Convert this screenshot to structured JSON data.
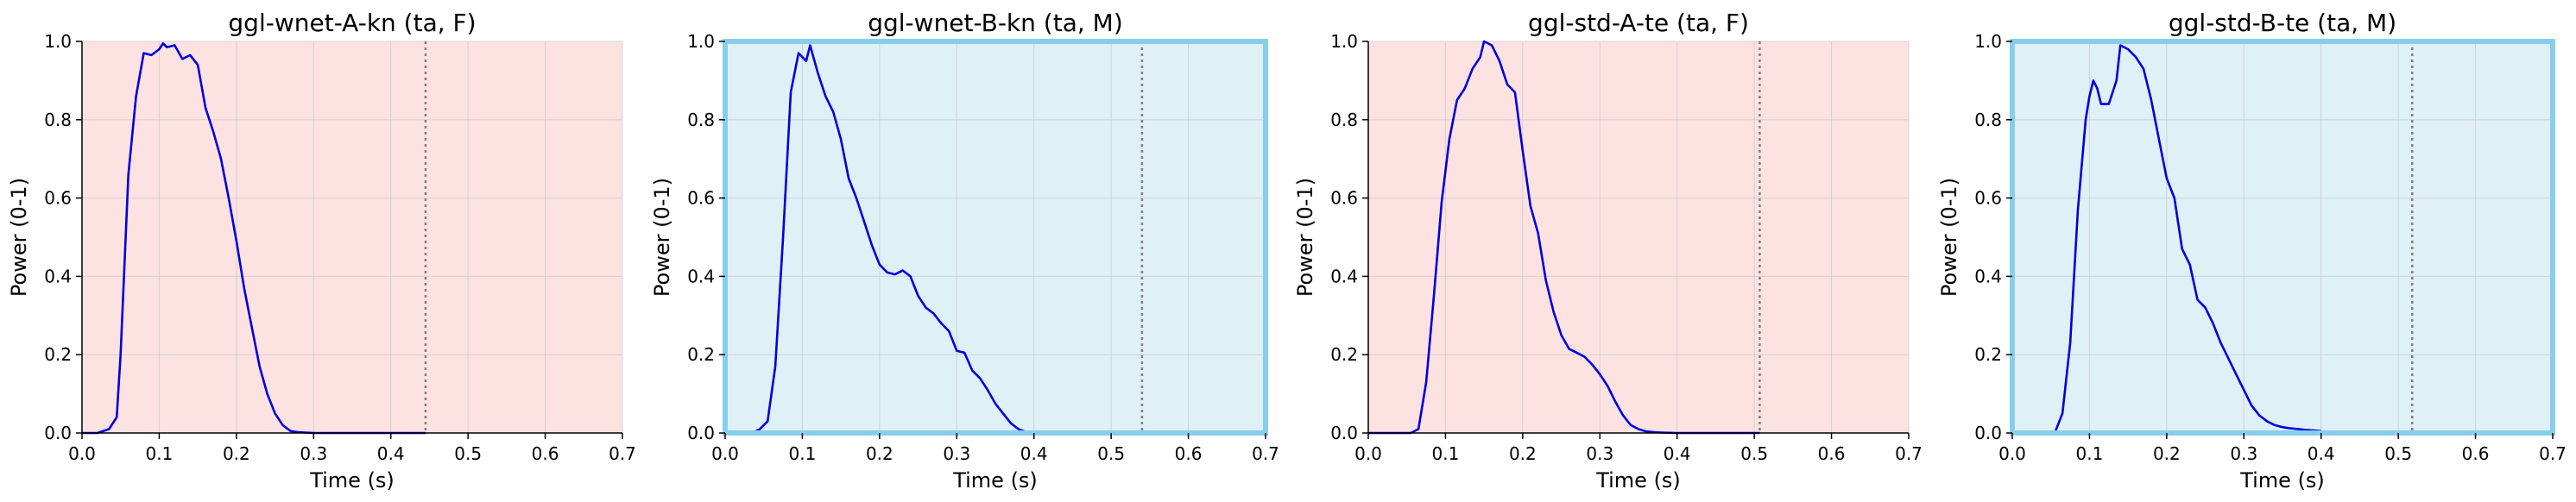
{
  "chart_data": [
    {
      "type": "line",
      "title": "ggl-wnet-A-kn (ta, F)",
      "xlabel": "Time (s)",
      "ylabel": "Power (0-1)",
      "xlim": [
        0,
        0.7
      ],
      "ylim": [
        0,
        1.0
      ],
      "xticks": [
        "0.0",
        "0.1",
        "0.2",
        "0.3",
        "0.4",
        "0.5",
        "0.6",
        "0.7"
      ],
      "yticks": [
        "0.0",
        "0.2",
        "0.4",
        "0.6",
        "0.8",
        "1.0"
      ],
      "grid": true,
      "background_color": "#fde2e2",
      "border_color": null,
      "marker_line": 0.445,
      "series": [
        {
          "color": "#0000dd",
          "x": [
            0,
            0.02,
            0.035,
            0.045,
            0.05,
            0.06,
            0.07,
            0.08,
            0.09,
            0.1,
            0.105,
            0.11,
            0.12,
            0.13,
            0.14,
            0.15,
            0.16,
            0.17,
            0.18,
            0.19,
            0.2,
            0.21,
            0.22,
            0.23,
            0.24,
            0.25,
            0.26,
            0.27,
            0.28,
            0.3,
            0.35,
            0.4,
            0.445
          ],
          "y": [
            0,
            0,
            0.01,
            0.04,
            0.2,
            0.66,
            0.86,
            0.97,
            0.965,
            0.98,
            0.995,
            0.985,
            0.99,
            0.955,
            0.965,
            0.94,
            0.83,
            0.77,
            0.7,
            0.6,
            0.49,
            0.37,
            0.27,
            0.17,
            0.1,
            0.05,
            0.02,
            0.005,
            0.002,
            0,
            0,
            0,
            0
          ]
        }
      ]
    },
    {
      "type": "line",
      "title": "ggl-wnet-B-kn (ta, M)",
      "xlabel": "Time (s)",
      "ylabel": "Power (0-1)",
      "xlim": [
        0,
        0.7
      ],
      "ylim": [
        0,
        1.0
      ],
      "xticks": [
        "0.0",
        "0.1",
        "0.2",
        "0.3",
        "0.4",
        "0.5",
        "0.6",
        "0.7"
      ],
      "yticks": [
        "0.0",
        "0.2",
        "0.4",
        "0.6",
        "0.8",
        "1.0"
      ],
      "grid": true,
      "background_color": "#dff0f7",
      "border_color": "#87ceeb",
      "marker_line": 0.54,
      "series": [
        {
          "color": "#0000dd",
          "x": [
            0.035,
            0.045,
            0.055,
            0.065,
            0.075,
            0.085,
            0.095,
            0.105,
            0.11,
            0.12,
            0.13,
            0.14,
            0.15,
            0.16,
            0.17,
            0.18,
            0.19,
            0.2,
            0.21,
            0.22,
            0.23,
            0.24,
            0.25,
            0.26,
            0.27,
            0.28,
            0.29,
            0.3,
            0.31,
            0.32,
            0.33,
            0.34,
            0.35,
            0.36,
            0.37,
            0.38,
            0.39,
            0.4
          ],
          "y": [
            0,
            0.01,
            0.03,
            0.17,
            0.5,
            0.87,
            0.97,
            0.95,
            0.99,
            0.92,
            0.86,
            0.82,
            0.75,
            0.65,
            0.6,
            0.54,
            0.48,
            0.43,
            0.41,
            0.405,
            0.415,
            0.4,
            0.35,
            0.32,
            0.305,
            0.28,
            0.26,
            0.21,
            0.205,
            0.16,
            0.14,
            0.11,
            0.075,
            0.05,
            0.025,
            0.01,
            0.002,
            0
          ]
        }
      ]
    },
    {
      "type": "line",
      "title": "ggl-std-A-te (ta, F)",
      "xlabel": "Time (s)",
      "ylabel": "Power (0-1)",
      "xlim": [
        0,
        0.7
      ],
      "ylim": [
        0,
        1.0
      ],
      "xticks": [
        "0.0",
        "0.1",
        "0.2",
        "0.3",
        "0.4",
        "0.5",
        "0.6",
        "0.7"
      ],
      "yticks": [
        "0.0",
        "0.2",
        "0.4",
        "0.6",
        "0.8",
        "1.0"
      ],
      "grid": true,
      "background_color": "#fde2e2",
      "border_color": null,
      "marker_line": 0.507,
      "series": [
        {
          "color": "#0000dd",
          "x": [
            0,
            0.055,
            0.065,
            0.075,
            0.085,
            0.095,
            0.105,
            0.115,
            0.125,
            0.135,
            0.145,
            0.15,
            0.16,
            0.17,
            0.18,
            0.19,
            0.2,
            0.21,
            0.22,
            0.23,
            0.24,
            0.25,
            0.26,
            0.27,
            0.28,
            0.29,
            0.3,
            0.31,
            0.32,
            0.33,
            0.34,
            0.35,
            0.36,
            0.37,
            0.38,
            0.4,
            0.45,
            0.507
          ],
          "y": [
            0,
            0,
            0.01,
            0.13,
            0.35,
            0.59,
            0.75,
            0.85,
            0.88,
            0.93,
            0.96,
            1.0,
            0.99,
            0.95,
            0.89,
            0.87,
            0.72,
            0.58,
            0.51,
            0.39,
            0.31,
            0.25,
            0.215,
            0.205,
            0.195,
            0.175,
            0.15,
            0.12,
            0.08,
            0.045,
            0.02,
            0.01,
            0.004,
            0.002,
            0.001,
            0,
            0,
            0
          ]
        }
      ]
    },
    {
      "type": "line",
      "title": "ggl-std-B-te (ta, M)",
      "xlabel": "Time (s)",
      "ylabel": "Power (0-1)",
      "xlim": [
        0,
        0.7
      ],
      "ylim": [
        0,
        1.0
      ],
      "xticks": [
        "0.0",
        "0.1",
        "0.2",
        "0.3",
        "0.4",
        "0.5",
        "0.6",
        "0.7"
      ],
      "yticks": [
        "0.0",
        "0.2",
        "0.4",
        "0.6",
        "0.8",
        "1.0"
      ],
      "grid": true,
      "background_color": "#dff0f7",
      "border_color": "#87ceeb",
      "marker_line": 0.518,
      "series": [
        {
          "color": "#0000dd",
          "x": [
            0.055,
            0.065,
            0.075,
            0.085,
            0.095,
            0.1,
            0.105,
            0.11,
            0.115,
            0.125,
            0.135,
            0.14,
            0.15,
            0.16,
            0.17,
            0.18,
            0.19,
            0.2,
            0.21,
            0.22,
            0.23,
            0.24,
            0.25,
            0.26,
            0.27,
            0.28,
            0.29,
            0.3,
            0.31,
            0.32,
            0.33,
            0.34,
            0.35,
            0.36,
            0.38,
            0.4
          ],
          "y": [
            0.0,
            0.05,
            0.23,
            0.57,
            0.8,
            0.86,
            0.9,
            0.88,
            0.84,
            0.84,
            0.9,
            0.99,
            0.98,
            0.96,
            0.93,
            0.85,
            0.75,
            0.65,
            0.6,
            0.47,
            0.43,
            0.34,
            0.32,
            0.28,
            0.23,
            0.19,
            0.15,
            0.11,
            0.07,
            0.045,
            0.03,
            0.02,
            0.015,
            0.012,
            0.008,
            0.005
          ]
        }
      ]
    }
  ]
}
